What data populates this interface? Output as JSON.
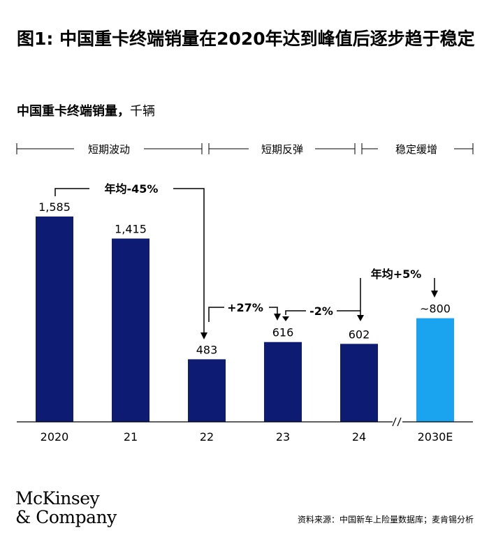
{
  "title": "图1: 中国重卡终端销量在2020年达到峰值后逐步趋于稳定",
  "subtitle": {
    "strong": "中国重卡终端销量，",
    "unit": "千辆"
  },
  "phases": [
    "短期波动",
    "短期反弹",
    "稳定缓增"
  ],
  "annotations": {
    "cagr_decline": "年均-45%",
    "growth_23": "+27%",
    "decline_24": "-2%",
    "cagr_growth": "年均+5%"
  },
  "colors": {
    "bar": "#0d1b72",
    "forecast": "#1aa3ef",
    "arrow": "#000000"
  },
  "chart_data": {
    "type": "bar",
    "categories": [
      "2020",
      "21",
      "22",
      "23",
      "24",
      "2030E"
    ],
    "values": [
      1585,
      1415,
      483,
      616,
      602,
      800
    ],
    "data_labels": [
      "1,585",
      "1,415",
      "483",
      "616",
      "602",
      "~800"
    ],
    "title": "中国重卡终端销量，千辆",
    "xlabel": "",
    "ylabel": "",
    "axis_break": "between 24 and 2030E",
    "grid": false
  },
  "logo": {
    "line1": "McKinsey",
    "line2": "& Company"
  },
  "source": "资料来源：中国新车上险量数据库；麦肯锡分析"
}
